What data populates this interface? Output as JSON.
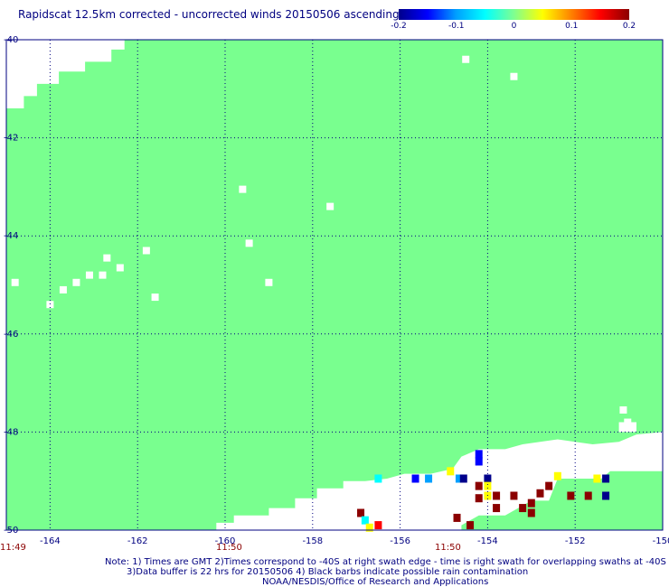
{
  "chart_data": {
    "type": "heatmap",
    "title": "Rapidscat 12.5km corrected - uncorrected winds 20150506 ascending",
    "colorbar": {
      "ticks": [
        "-0.2",
        "-0.1",
        "0",
        "0.1",
        "0.2"
      ],
      "range": [
        -0.2,
        0.2
      ],
      "colors": [
        "#00008b",
        "#0000ff",
        "#00a0ff",
        "#00ffff",
        "#7fff90",
        "#ffff00",
        "#ff8000",
        "#ff0000",
        "#8b0000"
      ]
    },
    "xaxis": {
      "range": [
        -165,
        -150
      ],
      "ticks": [
        -164,
        -162,
        -160,
        -158,
        -156,
        -154,
        -152,
        -150
      ],
      "tick_labels": [
        "-164",
        "-162",
        "-160",
        "-158",
        "-156",
        "-154",
        "-152",
        "-150"
      ]
    },
    "yaxis": {
      "range": [
        -50,
        -40
      ],
      "ticks": [
        -40,
        -42,
        -44,
        -46,
        -48,
        -50
      ],
      "tick_labels": [
        "-40",
        "-42",
        "-44",
        "-46",
        "-48",
        "-50"
      ]
    },
    "time_labels": [
      {
        "lon": -165,
        "text": "11:49"
      },
      {
        "lon": -160,
        "text": "11:50"
      },
      {
        "lon": -155,
        "text": "11:50"
      }
    ],
    "background_value": 0.0,
    "grid": true,
    "notes": [
      "Note: 1) Times are GMT 2)Times correspond to -40S at right swath edge - time is right swath for overlapping swaths at -40S",
      "3)Data buffer is 22 hrs for 20150506 4) Black barbs indicate possible rain contamination",
      "NOAA/NESDIS/Office of Research and Applications"
    ],
    "anomalies": [
      {
        "lon": -155.65,
        "lat": -48.95,
        "value": -0.15
      },
      {
        "lon": -155.35,
        "lat": -48.95,
        "value": -0.08
      },
      {
        "lon": -154.65,
        "lat": -48.95,
        "value": -0.1
      },
      {
        "lon": -154.55,
        "lat": -48.95,
        "value": -0.2
      },
      {
        "lon": -154.85,
        "lat": -48.8,
        "value": 0.07
      },
      {
        "lon": -154.2,
        "lat": -48.45,
        "value": -0.15
      },
      {
        "lon": -154.2,
        "lat": -48.6,
        "value": -0.15
      },
      {
        "lon": -154.2,
        "lat": -49.1,
        "value": 0.2
      },
      {
        "lon": -154.2,
        "lat": -49.35,
        "value": 0.2
      },
      {
        "lon": -154.0,
        "lat": -48.95,
        "value": -0.18
      },
      {
        "lon": -154.0,
        "lat": -49.1,
        "value": 0.06
      },
      {
        "lon": -154.0,
        "lat": -49.3,
        "value": 0.07
      },
      {
        "lon": -153.8,
        "lat": -49.3,
        "value": 0.2
      },
      {
        "lon": -153.8,
        "lat": -49.55,
        "value": 0.2
      },
      {
        "lon": -153.4,
        "lat": -49.3,
        "value": 0.2
      },
      {
        "lon": -153.2,
        "lat": -49.55,
        "value": 0.2
      },
      {
        "lon": -153.0,
        "lat": -49.45,
        "value": 0.2
      },
      {
        "lon": -153.0,
        "lat": -49.65,
        "value": 0.2
      },
      {
        "lon": -152.8,
        "lat": -49.25,
        "value": 0.2
      },
      {
        "lon": -152.6,
        "lat": -49.1,
        "value": 0.2
      },
      {
        "lon": -152.4,
        "lat": -48.9,
        "value": 0.06
      },
      {
        "lon": -152.1,
        "lat": -49.3,
        "value": 0.2
      },
      {
        "lon": -151.7,
        "lat": -49.3,
        "value": 0.2
      },
      {
        "lon": -151.3,
        "lat": -48.95,
        "value": -0.2
      },
      {
        "lon": -151.3,
        "lat": -49.3,
        "value": -0.2
      },
      {
        "lon": -151.5,
        "lat": -48.95,
        "value": 0.05
      },
      {
        "lon": -156.9,
        "lat": -49.65,
        "value": 0.2
      },
      {
        "lon": -156.8,
        "lat": -49.8,
        "value": -0.05
      },
      {
        "lon": -156.7,
        "lat": -49.95,
        "value": 0.07
      },
      {
        "lon": -156.5,
        "lat": -49.9,
        "value": 0.13
      },
      {
        "lon": -156.5,
        "lat": -48.95,
        "value": -0.06
      },
      {
        "lon": -154.7,
        "lat": -49.75,
        "value": 0.2
      },
      {
        "lon": -154.4,
        "lat": -49.9,
        "value": 0.2
      }
    ],
    "no_data_cells": [
      {
        "lon": -154.5,
        "lat": -40.4
      },
      {
        "lon": -153.4,
        "lat": -40.75
      },
      {
        "lon": -159.6,
        "lat": -43.05
      },
      {
        "lon": -157.6,
        "lat": -43.4
      },
      {
        "lon": -159.45,
        "lat": -44.15
      },
      {
        "lon": -161.8,
        "lat": -44.3
      },
      {
        "lon": -162.7,
        "lat": -44.45
      },
      {
        "lon": -162.4,
        "lat": -44.65
      },
      {
        "lon": -162.8,
        "lat": -44.8
      },
      {
        "lon": -163.1,
        "lat": -44.8
      },
      {
        "lon": -163.4,
        "lat": -44.95
      },
      {
        "lon": -163.7,
        "lat": -45.1
      },
      {
        "lon": -164.8,
        "lat": -44.95
      },
      {
        "lon": -164.0,
        "lat": -45.4
      },
      {
        "lon": -161.6,
        "lat": -45.25
      },
      {
        "lon": -159.0,
        "lat": -44.95
      },
      {
        "lon": -150.9,
        "lat": -47.55
      },
      {
        "lon": -150.8,
        "lat": -47.8
      }
    ]
  }
}
